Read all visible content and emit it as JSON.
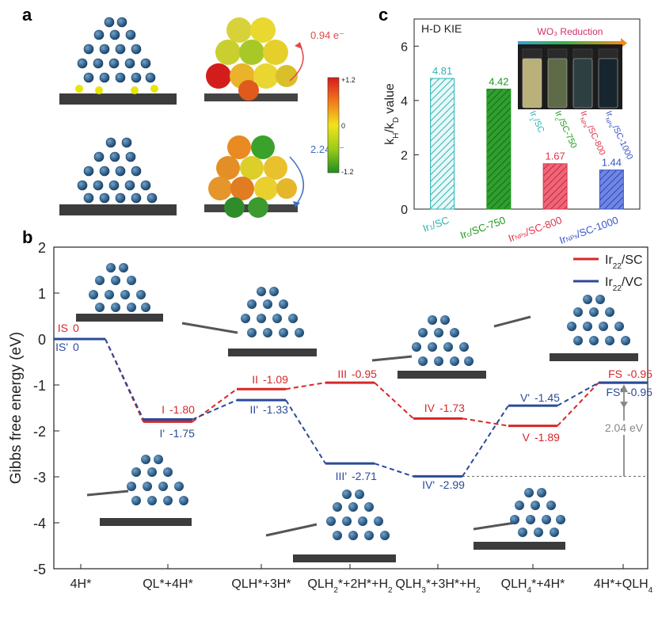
{
  "panel_labels": {
    "a": "a",
    "b": "b",
    "c": "c"
  },
  "panel_a": {
    "charge_top": "0.94 e⁻",
    "charge_bottom": "2.24 e⁻",
    "colorbar_max": "+1.2",
    "colorbar_mid": "0",
    "colorbar_min": "-1.2"
  },
  "colors": {
    "sc": "#d62728",
    "vc": "#2a4a9a",
    "bar1": "#2bb3b3",
    "bar2": "#1a9a1a",
    "bar3": "#e0344a",
    "bar4": "#3a55c8",
    "iridium": "#1f5b8a",
    "carbon": "#3c3c3c",
    "sulfur": "#e6e600",
    "guide": "#777777"
  },
  "chart_data": [
    {
      "type": "bar",
      "panel": "c",
      "title": "H-D KIE",
      "ylabel": "kH/kD value",
      "ylim": [
        0,
        7
      ],
      "yticks": [
        "0",
        "2",
        "4",
        "6"
      ],
      "categories": [
        {
          "main": "Ir",
          "sub": "1",
          "tail": "/SC"
        },
        {
          "main": "Ir",
          "sub": "c",
          "tail": "/SC-750"
        },
        {
          "main": "Ir",
          "sub": "NPs",
          "tail": "/SC-800"
        },
        {
          "main": "Ir",
          "sub": "NPs",
          "tail": "/SC-1000"
        }
      ],
      "values": [
        4.81,
        4.42,
        1.67,
        1.44
      ],
      "value_labels": [
        "4.81",
        "4.42",
        "1.67",
        "1.44"
      ],
      "inset_title": "WO₃ Reduction",
      "inset_vial_labels": [
        {
          "main": "Ir",
          "sub": "1",
          "tail": "/SC"
        },
        {
          "main": "Ir",
          "sub": "c",
          "tail": "/SC-750"
        },
        {
          "main": "Ir",
          "sub": "NPs",
          "tail": "/SC-800"
        },
        {
          "main": "Ir",
          "sub": "NPs",
          "tail": "/SC-1000"
        }
      ]
    },
    {
      "type": "line",
      "panel": "b",
      "ylabel": "Gibbs free energy (eV)",
      "ylim": [
        -5,
        2
      ],
      "yticks": [
        "2",
        "1",
        "0",
        "-1",
        "-2",
        "-3",
        "-4",
        "-5"
      ],
      "categories": [
        {
          "parts": [
            [
              "n",
              "4H*"
            ]
          ]
        },
        {
          "parts": [
            [
              "n",
              "QL*+4H*"
            ]
          ]
        },
        {
          "parts": [
            [
              "n",
              "QLH*+3H*"
            ]
          ]
        },
        {
          "parts": [
            [
              "n",
              "QLH"
            ],
            [
              "s",
              "2"
            ],
            [
              "n",
              "*+2H*+H"
            ],
            [
              "s",
              "2"
            ]
          ]
        },
        {
          "parts": [
            [
              "n",
              "QLH"
            ],
            [
              "s",
              "3"
            ],
            [
              "n",
              "*+3H*+H"
            ],
            [
              "s",
              "2"
            ]
          ]
        },
        {
          "parts": [
            [
              "n",
              "QLH"
            ],
            [
              "s",
              "4"
            ],
            [
              "n",
              "*+4H*"
            ]
          ]
        },
        {
          "parts": [
            [
              "n",
              "4H*+QLH"
            ],
            [
              "s",
              "4"
            ]
          ]
        }
      ],
      "legend": [
        {
          "main": "Ir",
          "sub": "22",
          "tail": "/SC"
        },
        {
          "main": "Ir",
          "sub": "22",
          "tail": "/VC"
        }
      ],
      "series": [
        {
          "name": "Ir22/SC",
          "values": [
            0,
            -1.8,
            -1.09,
            -0.95,
            -1.73,
            -1.89,
            -0.95
          ],
          "labels": [
            "IS",
            "I",
            "II",
            "III",
            "IV",
            "V",
            "FS"
          ],
          "value_labels": [
            "0",
            "-1.80",
            "-1.09",
            "-0.95",
            "-1.73",
            "-1.89",
            "-0.95"
          ]
        },
        {
          "name": "Ir22/VC",
          "values": [
            0,
            -1.75,
            -1.33,
            -2.71,
            -2.99,
            -1.45,
            -0.95
          ],
          "labels": [
            "IS'",
            "I'",
            "II'",
            "III'",
            "IV'",
            "V'",
            "FS'"
          ],
          "value_labels": [
            "0",
            "-1.75",
            "-1.33",
            "-2.71",
            "-2.99",
            "-1.45",
            "-0.95"
          ]
        }
      ],
      "annotation": "2.04 eV"
    }
  ]
}
